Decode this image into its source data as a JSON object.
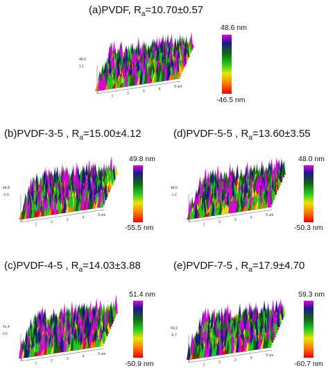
{
  "panels": [
    {
      "key": "a",
      "title_main": "(a)PVDF, R",
      "title_sub": "a",
      "title_tail": "=10.70±0.57",
      "max": "48.6 nm",
      "min": "-46.5 nm",
      "z_top": "48.6",
      "z_bot": "1.1",
      "tick": "5"
    },
    {
      "key": "b",
      "title_main": "(b)PVDF-3-5 , R",
      "title_sub": "a",
      "title_tail": "=15.00±4.12",
      "max": "49.8 nm",
      "min": "-55.5 nm",
      "z_top": "49.8",
      "z_bot": "-2.9",
      "tick": "5"
    },
    {
      "key": "d",
      "title_main": "(d)PVDF-5-5 , R",
      "title_sub": "a",
      "title_tail": "=13.60±3.55",
      "max": "48.0 nm",
      "min": "-50.3 nm",
      "z_top": "48.0",
      "z_bot": "-1.2",
      "tick": "5"
    },
    {
      "key": "c",
      "title_main": "(c)PVDF-4-5 , R",
      "title_sub": "a",
      "title_tail": "=14.03±3.88",
      "max": "51.4 nm",
      "min": "-50.9 nm",
      "z_top": "51.4",
      "z_bot": "0.2",
      "tick": "5"
    },
    {
      "key": "e",
      "title_main": "(e)PVDF-7-5 , R",
      "title_sub": "a",
      "title_tail": "=17.9±4.70",
      "max": "59.3 nm",
      "min": "-60.7 nm",
      "z_top": "59.3",
      "z_bot": "-0.7",
      "tick": "5"
    }
  ],
  "axis_unit": "um",
  "colors": {
    "magenta": "#e000e0",
    "navy": "#1a1a8c",
    "dkgreen": "#116611",
    "green": "#22cc22",
    "yellow": "#e6e600",
    "orange": "#ff8000",
    "red": "#ee0000"
  }
}
